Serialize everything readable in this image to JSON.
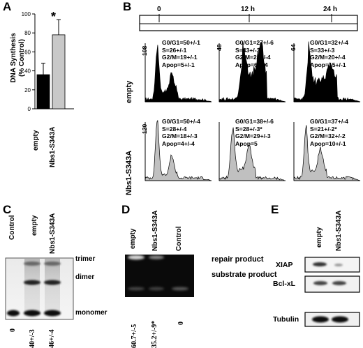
{
  "panel_labels": {
    "a": "A",
    "b": "B",
    "c": "C",
    "d": "D",
    "e": "E"
  },
  "panel_a": {
    "ylabel_line1": "DNA Synthesis",
    "ylabel_line2": "(% Control)",
    "asterisk": "*",
    "colors": {
      "empty": "#000000",
      "mutant": "#c8c8c8"
    }
  },
  "panel_b": {
    "times": [
      "0",
      "12 h",
      "24 h"
    ],
    "rows": [
      {
        "label": "empty",
        "fill": "#000000",
        "cells": [
          {
            "ymax": "108",
            "lines": [
              "G0/G1=50+/-1",
              "S=26+/-1",
              "G2/M=19+/-1",
              "Apop=5+/-1"
            ]
          },
          {
            "ymax": "48",
            "lines": [
              "G0/G1=27+/-6",
              "S=43+/-3",
              "G2/M=24+/-4",
              "Apop=6+/-4"
            ]
          },
          {
            "ymax": "64",
            "lines": [
              "G0/G1=32+/-4",
              "S=33+/-3",
              "G2/M=20+/-4",
              "Apop=15+/-1"
            ]
          }
        ]
      },
      {
        "label": "Nbs1-S343A",
        "fill": "#c0c0c0",
        "cells": [
          {
            "ymax": "120",
            "lines": [
              "G0/G1=50+/-4",
              "S=28+/-4",
              "G2/M=18+/-3",
              "Apop=4+/-4"
            ]
          },
          {
            "ymax": "",
            "lines": [
              "G0/G1=38+/-6",
              "S=28+/-3*",
              "G2/M=29+/-3",
              "Apop=5"
            ]
          },
          {
            "ymax": "",
            "lines": [
              "G0/G1=37+/-4",
              "S=21+/-2*",
              "G2/M=32+/-2",
              "Apop=10+/-1"
            ]
          }
        ]
      }
    ]
  },
  "lanes": {
    "control": "Control",
    "empty": "empty",
    "mutant": "Nbs1-S343A"
  },
  "panel_c": {
    "bands": {
      "trimer": "trimer",
      "dimer": "dimer",
      "monomer": "monomer"
    },
    "values": [
      "0",
      "40+/-3",
      "46+/-4"
    ]
  },
  "panel_d": {
    "bands": {
      "repair": "repair product",
      "substrate": "substrate product"
    },
    "values": [
      "60.7+/-5",
      "35.2+/-9*",
      "0"
    ]
  },
  "panel_e": {
    "rows": [
      "XIAP",
      "Bcl-xL",
      "Tubulin"
    ]
  },
  "chart_data": {
    "type": "bar",
    "categories": [
      "empty",
      "Nbs1-S343A"
    ],
    "values": [
      36,
      78
    ],
    "errors": [
      12,
      16
    ],
    "ylabel": "DNA Synthesis (% Control)",
    "yticks": [
      "0",
      "20",
      "40",
      "60",
      "80",
      "100"
    ],
    "ylim": [
      0,
      100
    ],
    "annotation": "*"
  }
}
